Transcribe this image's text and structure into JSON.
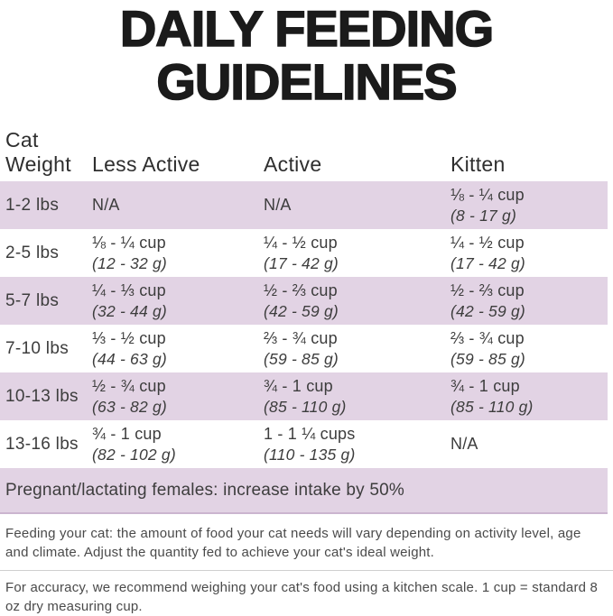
{
  "title": {
    "line1": "DAILY FEEDING",
    "line2": "GUIDELINES"
  },
  "table": {
    "header": {
      "weight_line1": "Cat",
      "weight_line2": "Weight",
      "cols": [
        "Less Active",
        "Active",
        "Kitten"
      ]
    },
    "rows": [
      {
        "weight": "1-2 lbs",
        "cells": [
          {
            "amount": "N/A",
            "grams": ""
          },
          {
            "amount": "N/A",
            "grams": ""
          },
          {
            "amount": "⅛ - ¼ cup",
            "grams": "(8 - 17 g)"
          }
        ]
      },
      {
        "weight": "2-5 lbs",
        "cells": [
          {
            "amount": "⅛ - ¼ cup",
            "grams": "(12 - 32 g)"
          },
          {
            "amount": "¼ - ½ cup",
            "grams": "(17 - 42 g)"
          },
          {
            "amount": "¼ - ½ cup",
            "grams": "(17 - 42 g)"
          }
        ]
      },
      {
        "weight": "5-7 lbs",
        "cells": [
          {
            "amount": "¼ - ⅓ cup",
            "grams": "(32 - 44 g)"
          },
          {
            "amount": "½ - ⅔ cup",
            "grams": "(42 - 59 g)"
          },
          {
            "amount": "½ - ⅔ cup",
            "grams": "(42 - 59 g)"
          }
        ]
      },
      {
        "weight": "7-10 lbs",
        "cells": [
          {
            "amount": "⅓ - ½ cup",
            "grams": "(44 - 63 g)"
          },
          {
            "amount": "⅔ - ¾ cup",
            "grams": "(59 - 85 g)"
          },
          {
            "amount": "⅔ - ¾ cup",
            "grams": "(59 - 85 g)"
          }
        ]
      },
      {
        "weight": "10-13 lbs",
        "cells": [
          {
            "amount": "½ - ¾ cup",
            "grams": "(63 - 82 g)"
          },
          {
            "amount": "¾ - 1 cup",
            "grams": "(85 - 110 g)"
          },
          {
            "amount": "¾ - 1 cup",
            "grams": "(85 - 110 g)"
          }
        ]
      },
      {
        "weight": "13-16 lbs",
        "cells": [
          {
            "amount": "¾ - 1 cup",
            "grams": "(82 - 102 g)"
          },
          {
            "amount": "1 - 1 ¼ cups",
            "grams": "(110 - 135 g)"
          },
          {
            "amount": "N/A",
            "grams": ""
          }
        ]
      }
    ]
  },
  "banner": {
    "text": "Pregnant/lactating females: increase intake by 50%"
  },
  "notes": {
    "feeding": "Feeding your cat: the amount of food your cat needs will vary depending on activity level, age and climate. Adjust the quantity fed to achieve your cat's ideal weight.",
    "accuracy": "For accuracy, we recommend weighing your cat's food using a kitchen scale. 1 cup = standard 8 oz dry measuring cup."
  },
  "colors": {
    "row_highlight": "#e2d3e4",
    "banner_border": "#cbb5cf",
    "title_ink": "#1b1b1b",
    "body_ink": "#3d3d3d"
  },
  "chart_data": {
    "type": "table",
    "title": "Daily Feeding Guidelines",
    "columns": [
      "Cat Weight",
      "Less Active",
      "Active",
      "Kitten"
    ],
    "rows": [
      [
        "1-2 lbs",
        "N/A",
        "N/A",
        "⅛ - ¼ cup (8 - 17 g)"
      ],
      [
        "2-5 lbs",
        "⅛ - ¼ cup (12 - 32 g)",
        "¼ - ½ cup (17 - 42 g)",
        "¼ - ½ cup (17 - 42 g)"
      ],
      [
        "5-7 lbs",
        "¼ - ⅓ cup (32 - 44 g)",
        "½ - ⅔ cup (42 - 59 g)",
        "½ - ⅔ cup (42 - 59 g)"
      ],
      [
        "7-10 lbs",
        "⅓ - ½ cup (44 - 63 g)",
        "⅔ - ¾ cup (59 - 85 g)",
        "⅔ - ¾ cup (59 - 85 g)"
      ],
      [
        "10-13 lbs",
        "½ - ¾ cup (63 - 82 g)",
        "¾ - 1 cup (85 - 110 g)",
        "¾ - 1 cup (85 - 110 g)"
      ],
      [
        "13-16 lbs",
        "¾ - 1 cup (82 - 102 g)",
        "1 - 1 ¼ cups (110 - 135 g)",
        "N/A"
      ]
    ],
    "footnote": "Pregnant/lactating females: increase intake by 50%"
  }
}
